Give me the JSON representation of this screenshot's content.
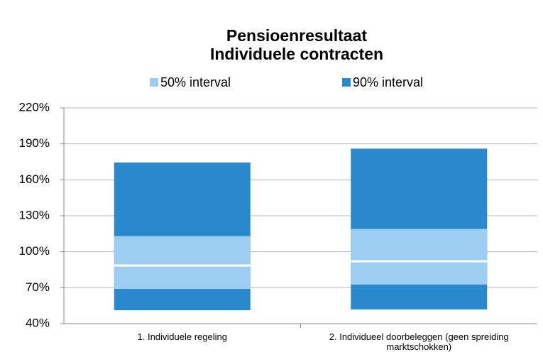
{
  "chart_data": {
    "type": "floating_bar",
    "title": [
      "Pensioenresultaat",
      "Individuele contracten"
    ],
    "categories": [
      "1. Individuele regeling",
      "2. Individueel doorbeleggen (geen spreiding marktschokken)"
    ],
    "series": [
      {
        "name": "50% interval",
        "color": "#9dcef1",
        "values": [
          [
            69,
            113
          ],
          [
            72.6,
            119
          ]
        ]
      },
      {
        "name": "90% interval",
        "color": "#2a88cc",
        "values": [
          [
            51.2,
            174.4
          ],
          [
            51.8,
            186
          ]
        ]
      }
    ],
    "median": [
      88.5,
      92
    ],
    "median_color": "#ffffff",
    "ylim": [
      40,
      220
    ],
    "yticks": [
      {
        "value": 40,
        "label": "40%"
      },
      {
        "value": 70,
        "label": "70%"
      },
      {
        "value": 100,
        "label": "100%"
      },
      {
        "value": 130,
        "label": "130%"
      },
      {
        "value": 160,
        "label": "160%"
      },
      {
        "value": 190,
        "label": "190%"
      },
      {
        "value": 220,
        "label": "220%"
      }
    ],
    "grid": true,
    "legend": "top"
  }
}
